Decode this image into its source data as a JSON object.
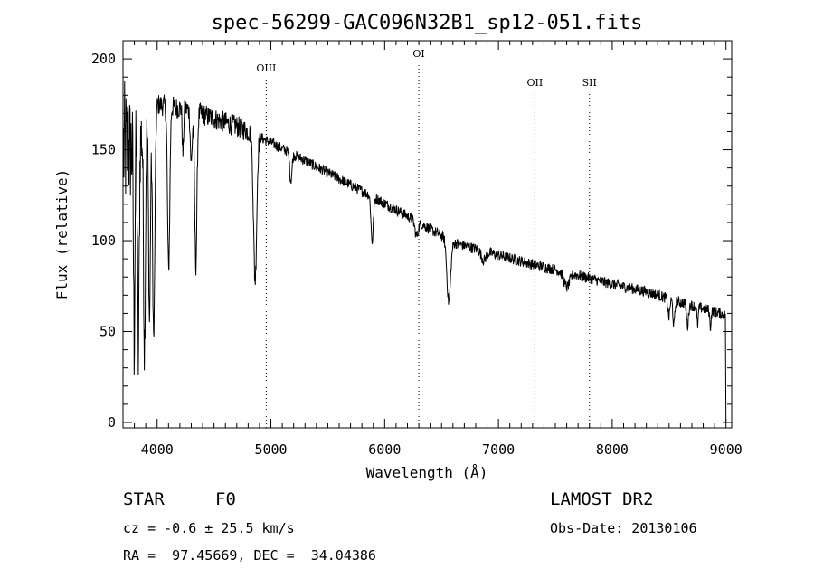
{
  "chart_data": {
    "type": "line",
    "title": "spec-56299-GAC096N32B1_sp12-051.fits",
    "xlabel": "Wavelength (Å)",
    "ylabel": "Flux (relative)",
    "xlim": [
      3700,
      9050
    ],
    "ylim": [
      -3,
      210
    ],
    "xticks": [
      4000,
      5000,
      6000,
      7000,
      8000,
      9000
    ],
    "yticks": [
      0,
      50,
      100,
      150,
      200
    ],
    "continuum_points": [
      [
        3800,
        150
      ],
      [
        4000,
        175
      ],
      [
        4300,
        172
      ],
      [
        4500,
        167
      ],
      [
        4700,
        163
      ],
      [
        4900,
        157
      ],
      [
        5000,
        154
      ],
      [
        5300,
        144
      ],
      [
        5600,
        134
      ],
      [
        5900,
        124
      ],
      [
        6300,
        110
      ],
      [
        6600,
        99
      ],
      [
        7000,
        92
      ],
      [
        7300,
        87
      ],
      [
        7700,
        81
      ],
      [
        8000,
        76
      ],
      [
        8300,
        72
      ],
      [
        8600,
        66
      ],
      [
        8900,
        61
      ],
      [
        8990,
        59
      ]
    ],
    "absorption_features": [
      {
        "center": 3798,
        "width": 6,
        "depth": 105
      },
      {
        "center": 3835,
        "width": 7,
        "depth": 120
      },
      {
        "center": 3889,
        "width": 8,
        "depth": 120
      },
      {
        "center": 3933,
        "width": 8,
        "depth": 110
      },
      {
        "center": 3970,
        "width": 10,
        "depth": 125
      },
      {
        "center": 4101,
        "width": 10,
        "depth": 90
      },
      {
        "center": 4227,
        "width": 6,
        "depth": 25
      },
      {
        "center": 4300,
        "width": 8,
        "depth": 30
      },
      {
        "center": 4340,
        "width": 10,
        "depth": 85
      },
      {
        "center": 4861,
        "width": 14,
        "depth": 80
      },
      {
        "center": 5175,
        "width": 10,
        "depth": 15
      },
      {
        "center": 5890,
        "width": 10,
        "depth": 25
      },
      {
        "center": 6280,
        "width": 15,
        "depth": 8
      },
      {
        "center": 6563,
        "width": 16,
        "depth": 34
      },
      {
        "center": 6870,
        "width": 20,
        "depth": 5
      },
      {
        "center": 7600,
        "width": 25,
        "depth": 8
      },
      {
        "center": 8498,
        "width": 8,
        "depth": 10
      },
      {
        "center": 8542,
        "width": 8,
        "depth": 14
      },
      {
        "center": 8662,
        "width": 8,
        "depth": 12
      },
      {
        "center": 8750,
        "width": 6,
        "depth": 10
      },
      {
        "center": 8863,
        "width": 6,
        "depth": 9
      }
    ],
    "noise": {
      "blue_end_amplitude": 35,
      "amplitude": 3
    },
    "reference_lines": [
      {
        "label": "OIII",
        "x": 4959,
        "label_flux": 193
      },
      {
        "label": "OI",
        "x": 6300,
        "label_flux": 201
      },
      {
        "label": "OII",
        "x": 7320,
        "label_flux": 185
      },
      {
        "label": "SII",
        "x": 7800,
        "label_flux": 185
      }
    ]
  },
  "info": {
    "object_class": "STAR",
    "subclass": "F0",
    "survey": "LAMOST DR2",
    "redshift": "cz = -0.6 ± 25.5 km/s",
    "obs_date": "Obs-Date: 20130106",
    "coordinates": "RA =  97.45669, DEC =  34.04386"
  }
}
